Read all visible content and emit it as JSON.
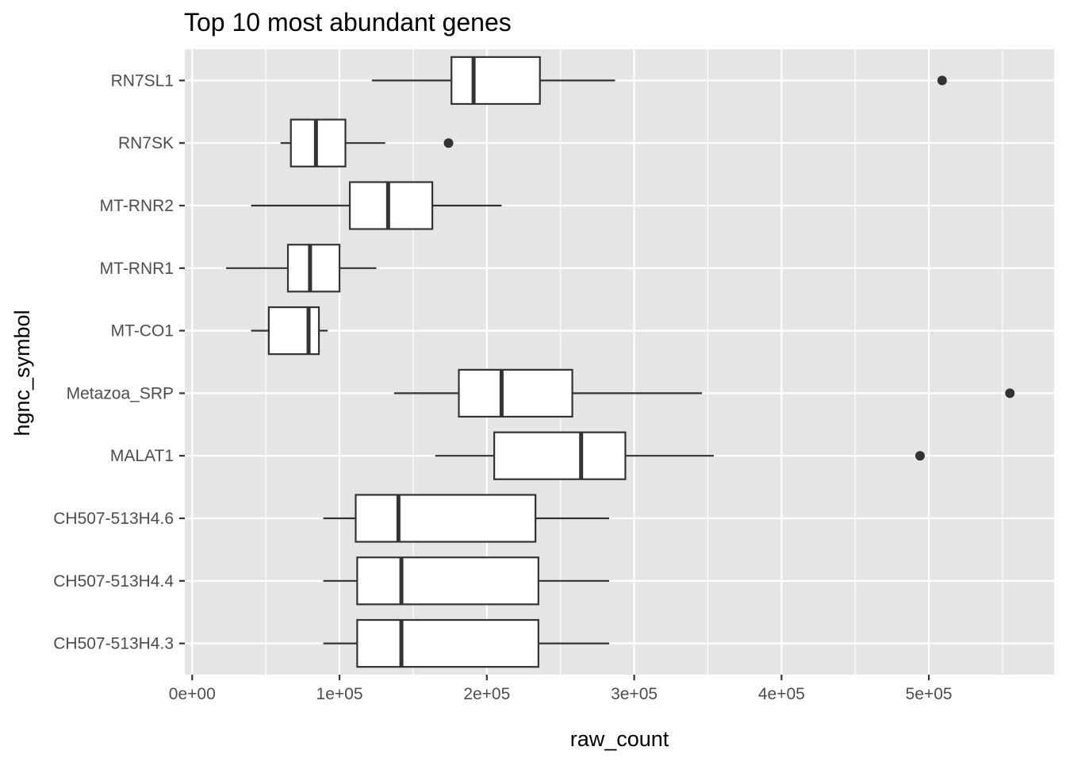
{
  "chart_data": {
    "type": "boxplot",
    "orientation": "horizontal",
    "title": "Top 10 most abundant genes",
    "xlabel": "raw_count",
    "ylabel": "hgnc_symbol",
    "xlim": [
      -5000,
      585000
    ],
    "x_ticks": [
      0,
      100000,
      200000,
      300000,
      400000,
      500000
    ],
    "x_tick_labels": [
      "0e+00",
      "1e+05",
      "2e+05",
      "3e+05",
      "4e+05",
      "5e+05"
    ],
    "grid": true,
    "colors": {
      "panel": "#e5e5e5",
      "grid": "#ffffff",
      "box_fill": "#ffffff",
      "box_stroke": "#333333",
      "tick_text": "#4d4d4d"
    },
    "categories": [
      "RN7SL1",
      "RN7SK",
      "MT-RNR2",
      "MT-RNR1",
      "MT-CO1",
      "Metazoa_SRP",
      "MALAT1",
      "CH507-513H4.6",
      "CH507-513H4.4",
      "CH507-513H4.3"
    ],
    "boxes": [
      {
        "label": "RN7SL1",
        "whisker_low": 122000,
        "q1": 176000,
        "median": 191000,
        "q3": 236000,
        "whisker_high": 287000,
        "outliers": [
          509000
        ]
      },
      {
        "label": "RN7SK",
        "whisker_low": 60000,
        "q1": 67000,
        "median": 84000,
        "q3": 104000,
        "whisker_high": 131000,
        "outliers": [
          174000
        ]
      },
      {
        "label": "MT-RNR2",
        "whisker_low": 40000,
        "q1": 107000,
        "median": 133000,
        "q3": 163000,
        "whisker_high": 210000,
        "outliers": []
      },
      {
        "label": "MT-RNR1",
        "whisker_low": 23000,
        "q1": 65000,
        "median": 80000,
        "q3": 100000,
        "whisker_high": 125000,
        "outliers": []
      },
      {
        "label": "MT-CO1",
        "whisker_low": 40000,
        "q1": 52000,
        "median": 79000,
        "q3": 86000,
        "whisker_high": 92000,
        "outliers": []
      },
      {
        "label": "Metazoa_SRP",
        "whisker_low": 137000,
        "q1": 181000,
        "median": 210000,
        "q3": 258000,
        "whisker_high": 346000,
        "outliers": [
          555000
        ]
      },
      {
        "label": "MALAT1",
        "whisker_low": 165000,
        "q1": 205000,
        "median": 264000,
        "q3": 294000,
        "whisker_high": 354000,
        "outliers": [
          494000
        ]
      },
      {
        "label": "CH507-513H4.6",
        "whisker_low": 89000,
        "q1": 111000,
        "median": 140000,
        "q3": 233000,
        "whisker_high": 283000,
        "outliers": []
      },
      {
        "label": "CH507-513H4.4",
        "whisker_low": 89000,
        "q1": 112000,
        "median": 142000,
        "q3": 235000,
        "whisker_high": 283000,
        "outliers": []
      },
      {
        "label": "CH507-513H4.3",
        "whisker_low": 89000,
        "q1": 112000,
        "median": 142000,
        "q3": 235000,
        "whisker_high": 283000,
        "outliers": []
      }
    ]
  }
}
